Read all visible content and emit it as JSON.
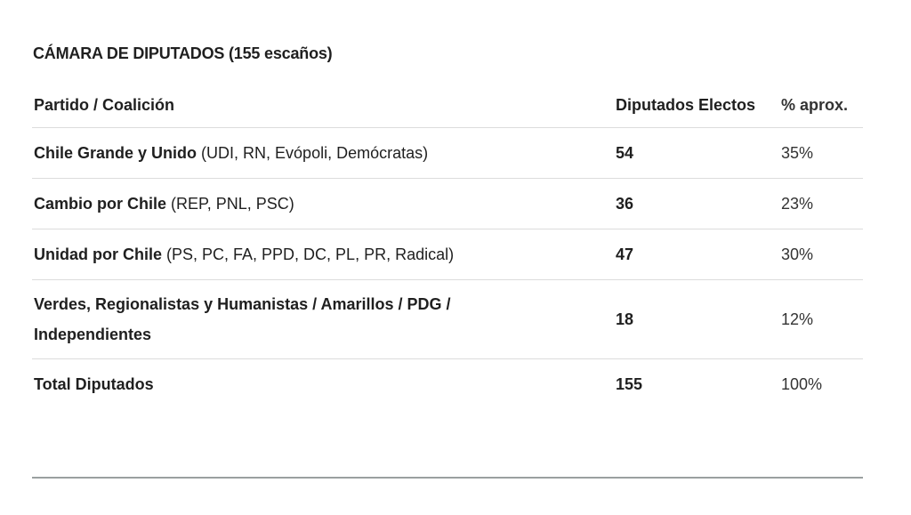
{
  "title": "CÁMARA DE DIPUTADOS (155 escaños)",
  "table": {
    "headers": [
      "Partido / Coalición",
      "Diputados Electos",
      "% aprox."
    ],
    "rows": [
      {
        "name": "Chile Grande y Unido",
        "parties": "(UDI, RN, Evópoli, Demócratas)",
        "seats": "54",
        "pct": "35%"
      },
      {
        "name": "Cambio por Chile",
        "parties": "(REP, PNL, PSC)",
        "seats": "36",
        "pct": "23%"
      },
      {
        "name": "Unidad por Chile",
        "parties": "(PS, PC, FA, PPD, DC, PL, PR, Radical)",
        "seats": "47",
        "pct": "30%"
      },
      {
        "name": "Verdes, Regionalistas y Humanistas / Amarillos / PDG / Independientes",
        "parties": "",
        "seats": "18",
        "pct": "12%"
      }
    ],
    "total": {
      "name": "Total Diputados",
      "seats": "155",
      "pct": "100%"
    }
  }
}
